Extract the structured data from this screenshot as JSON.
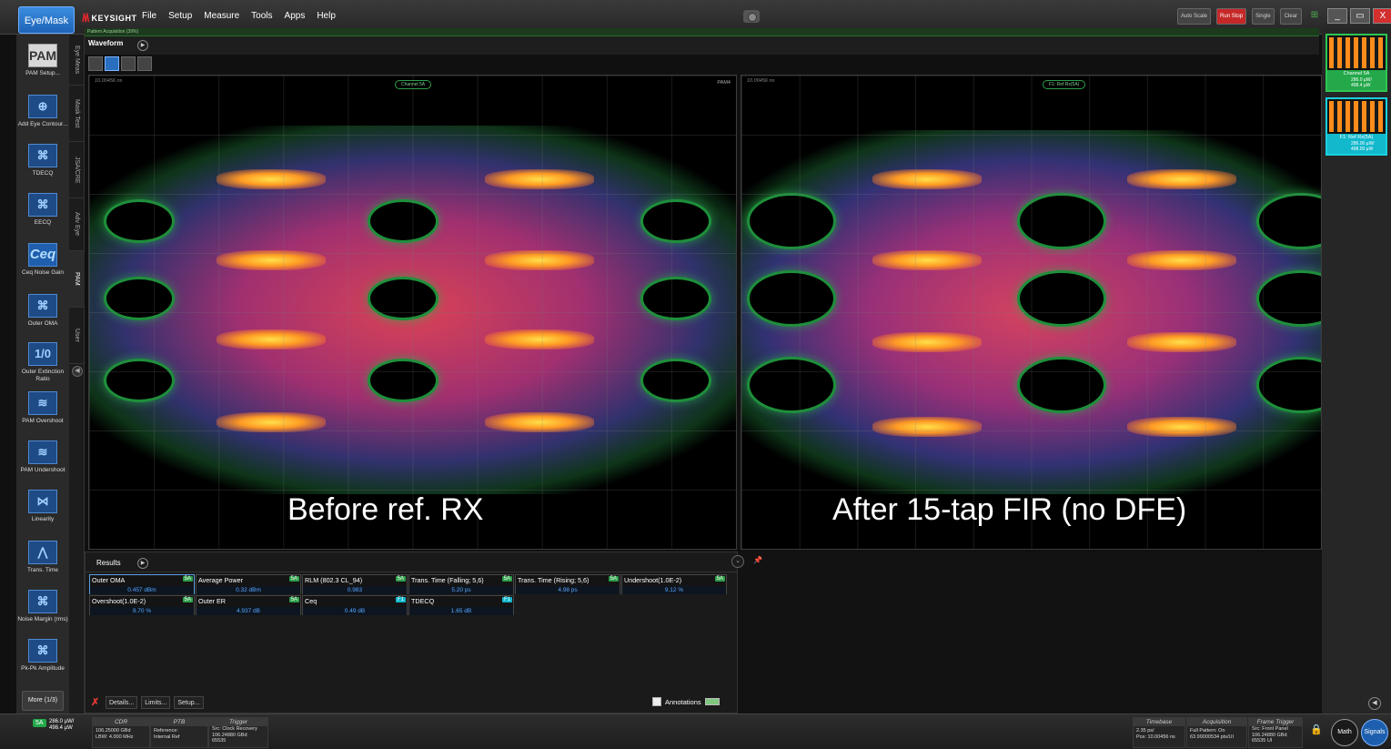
{
  "app": {
    "eye_mask_button": "Eye/Mask",
    "brand": "KEYSIGHT",
    "menu": [
      "File",
      "Setup",
      "Measure",
      "Tools",
      "Apps",
      "Help"
    ],
    "controls": [
      "Auto Scale",
      "Run Stop",
      "Single",
      "Clear"
    ],
    "window_buttons": [
      "_",
      "▭",
      "X"
    ]
  },
  "left_tools": [
    {
      "label": "PAM Setup...",
      "glyph": "PAM",
      "kind": "pam"
    },
    {
      "label": "Add Eye Contour...",
      "glyph": "⊕",
      "kind": "eye"
    },
    {
      "label": "TDECQ",
      "glyph": "⌘",
      "kind": "eye"
    },
    {
      "label": "EECQ",
      "glyph": "⌘",
      "kind": "eye"
    },
    {
      "label": "Ceq Noise Gain",
      "glyph": "Ceq",
      "kind": "ceq"
    },
    {
      "label": "Outer OMA",
      "glyph": "⌘",
      "kind": "eye"
    },
    {
      "label": "Outer Extinction Ratio",
      "glyph": "1/0",
      "kind": "eye"
    },
    {
      "label": "PAM Overshoot",
      "glyph": "≋",
      "kind": "eye"
    },
    {
      "label": "PAM Undershoot",
      "glyph": "≋",
      "kind": "eye"
    },
    {
      "label": "Linearity",
      "glyph": "⋈",
      "kind": "eye"
    },
    {
      "label": "Trans. Time",
      "glyph": "⋀",
      "kind": "eye"
    },
    {
      "label": "Noise Margin (rms)",
      "glyph": "⌘",
      "kind": "eye"
    },
    {
      "label": "Pk-Pk Amplitude",
      "glyph": "⌘",
      "kind": "eye"
    }
  ],
  "more_button": "More (1/3)",
  "vertical_tabs": [
    "Eye Meas",
    "Mask Test",
    "JSA/CRE",
    "Adv Eye",
    "PAM",
    "User"
  ],
  "ribbon_text": "Pattern Acquisition (39%)",
  "waveform_tab": "Waveform",
  "plots": {
    "left": {
      "timestamp": "10.00456 ns",
      "badge": "Channel 5A",
      "mode": "PAM4",
      "overlay": "Before ref. RX"
    },
    "right": {
      "timestamp": "10.00456 ns",
      "badge": "F1: Ref Rx(5A)",
      "overlay": "After 15-tap FIR (no DFE)"
    }
  },
  "thumbnails": [
    {
      "caption": "Channel 5A",
      "badge": "5A",
      "values": [
        "286.0 µW/",
        "498.4 µW"
      ],
      "accent": "green"
    },
    {
      "caption": "F1: Ref Rx(5A)",
      "badge": "F1",
      "values": [
        "286.00 µW/",
        "498.00 µW"
      ],
      "accent": "cyan"
    }
  ],
  "results": {
    "tab": "Results",
    "cells": [
      {
        "name": "Outer OMA",
        "src": "5A",
        "value": "0.457 dBm"
      },
      {
        "name": "Average Power",
        "src": "5A",
        "value": "0.32 dBm"
      },
      {
        "name": "RLM (802.3 CL_94)",
        "src": "5A",
        "value": "0.983"
      },
      {
        "name": "Trans. Time (Falling; 5,6)",
        "src": "5A",
        "value": "5.20 ps"
      },
      {
        "name": "Trans. Time (Rising; 5,6)",
        "src": "5A",
        "value": "4.98 ps"
      },
      {
        "name": "Undershoot(1.0E-2)",
        "src": "5A",
        "value": "9.12 %"
      },
      {
        "name": "Overshoot(1.0E-2)",
        "src": "5A",
        "value": "9.70 %"
      },
      {
        "name": "Outer ER",
        "src": "5A",
        "value": "4.937 dB"
      },
      {
        "name": "Ceq",
        "src": "F1",
        "value": "0.49 dB"
      },
      {
        "name": "TDECQ",
        "src": "F1",
        "value": "1.65 dB"
      }
    ],
    "footer_buttons": [
      "Details...",
      "Limits...",
      "Setup..."
    ],
    "annotations_label": "Annotations"
  },
  "status": {
    "channel_badge": "5A",
    "channel_values": [
      "286.0 µW/",
      "498.4 µW"
    ],
    "cdr": {
      "title": "CDR",
      "lines": [
        "106.25000 GBd",
        "LBW: 4.000 MHz"
      ]
    },
    "ptb": {
      "title": "PTB",
      "lines": [
        "Reference:",
        "Internal Ref"
      ]
    },
    "trigger": {
      "title": "Trigger",
      "lines": [
        "Src: Clock Recovery",
        "106.24880 GBd",
        "65535"
      ]
    },
    "timebase": {
      "title": "Timebase",
      "lines": [
        "2.35 ps/",
        "Pos: 10.00456 ns"
      ]
    },
    "acquisition": {
      "title": "Acquisition",
      "lines": [
        "Full Pattern: On",
        "63.99000534 pts/UI"
      ]
    },
    "frame_trigger": {
      "title": "Frame Trigger",
      "lines": [
        "Src: Front Panel",
        "106.24880 GBd",
        "65535 UI"
      ]
    },
    "math_button": "Math",
    "signals_button": "Signals"
  }
}
